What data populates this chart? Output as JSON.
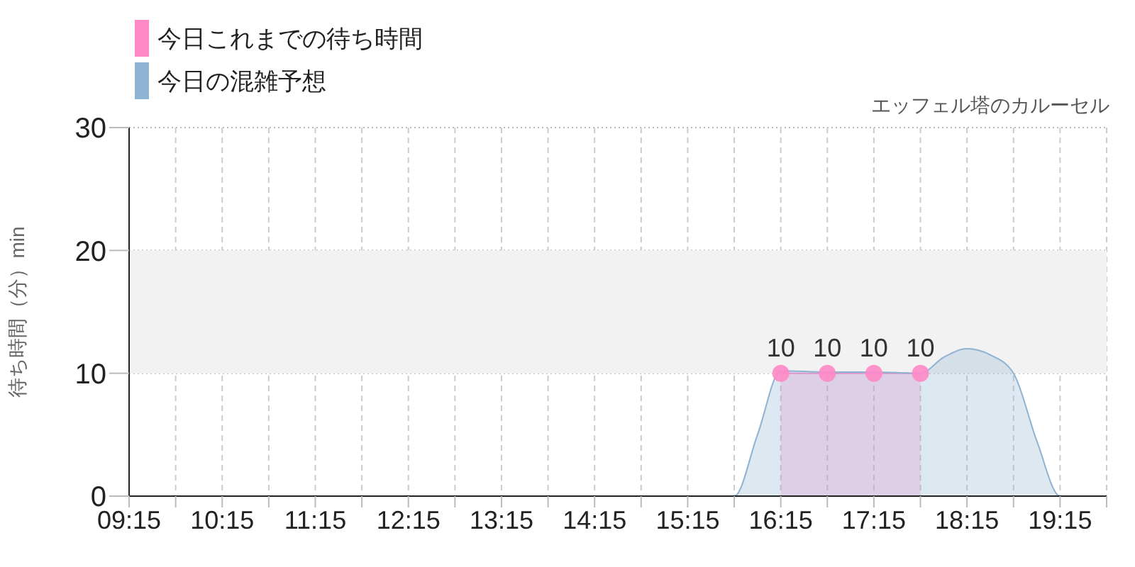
{
  "chart_data": {
    "type": "area",
    "title": "エッフェル塔のカルーセル",
    "ylabel": "待ち時間（分）min",
    "xlim": [
      9.25,
      19.75
    ],
    "xticks": [
      {
        "value": 9.25,
        "label": "09:15"
      },
      {
        "value": 9.75,
        "label": null
      },
      {
        "value": 10.25,
        "label": "10:15"
      },
      {
        "value": 10.75,
        "label": null
      },
      {
        "value": 11.25,
        "label": "11:15"
      },
      {
        "value": 11.75,
        "label": null
      },
      {
        "value": 12.25,
        "label": "12:15"
      },
      {
        "value": 12.75,
        "label": null
      },
      {
        "value": 13.25,
        "label": "13:15"
      },
      {
        "value": 13.75,
        "label": null
      },
      {
        "value": 14.25,
        "label": "14:15"
      },
      {
        "value": 14.75,
        "label": null
      },
      {
        "value": 15.25,
        "label": "15:15"
      },
      {
        "value": 15.75,
        "label": null
      },
      {
        "value": 16.25,
        "label": "16:15"
      },
      {
        "value": 16.75,
        "label": null
      },
      {
        "value": 17.25,
        "label": "17:15"
      },
      {
        "value": 17.75,
        "label": null
      },
      {
        "value": 18.25,
        "label": "18:15"
      },
      {
        "value": 18.75,
        "label": null
      },
      {
        "value": 19.25,
        "label": "19:15"
      },
      {
        "value": 19.75,
        "label": null
      }
    ],
    "ylim": [
      0,
      30
    ],
    "yticks": [
      0,
      10,
      20,
      30
    ],
    "grid": true,
    "legend": "top left",
    "bands": [
      {
        "axis": "y",
        "from": 10,
        "to": 20,
        "color": "#f2f2f2"
      }
    ],
    "series": [
      {
        "name": "今日の混雑予想",
        "color": "#8eb2d2",
        "marker": "none",
        "x": [
          9.25,
          10.25,
          11.25,
          12.25,
          13.25,
          14.25,
          15.25,
          15.75,
          16.0,
          16.25,
          16.75,
          17.25,
          17.75,
          18.0,
          18.25,
          18.5,
          18.75,
          19.0,
          19.25,
          19.75
        ],
        "values": [
          0,
          0,
          0,
          0,
          0,
          0,
          0,
          0,
          5,
          10.2,
          10.1,
          10.1,
          10,
          11.3,
          12,
          11.5,
          10,
          4.5,
          0,
          0
        ]
      },
      {
        "name": "今日これまでの待ち時間",
        "color": "#ff88c8",
        "marker": "circle",
        "x": [
          16.25,
          16.75,
          17.25,
          17.75
        ],
        "values": [
          10,
          10,
          10,
          10
        ],
        "value_labels": [
          "10",
          "10",
          "10",
          "10"
        ]
      }
    ]
  }
}
